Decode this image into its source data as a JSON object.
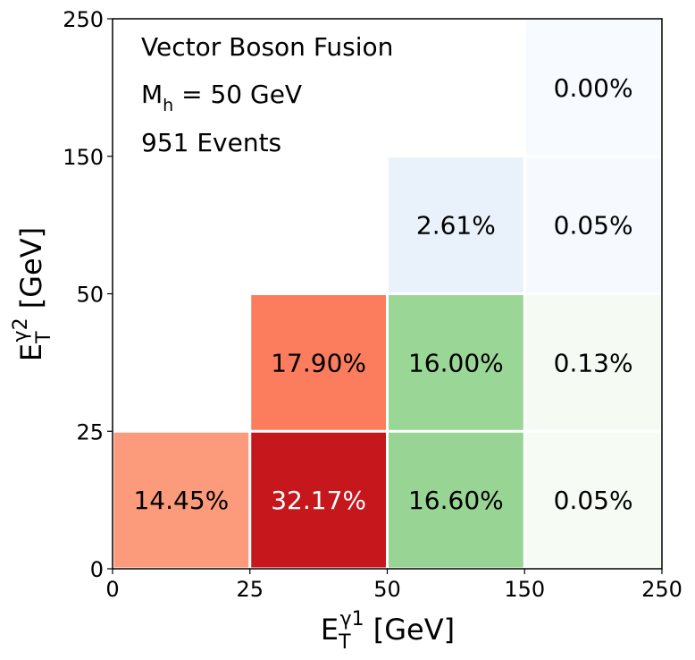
{
  "chart_data": {
    "type": "heatmap",
    "x_bin_edges": [
      "0",
      "25",
      "50",
      "150",
      "250"
    ],
    "y_bin_edges": [
      "0",
      "25",
      "50",
      "150",
      "250"
    ],
    "xlabel": {
      "base": "E",
      "sub": "T",
      "sup": "γ1",
      "unit": " [GeV]"
    },
    "ylabel": {
      "base": "E",
      "sub": "T",
      "sup": "γ2",
      "unit": " [GeV]"
    },
    "annotations": {
      "process": "Vector Boson Fusion",
      "mass_base": "M",
      "mass_sub": "h",
      "mass_value": " = 50 GeV",
      "events": "951 Events"
    },
    "cells": [
      {
        "xbin": 0,
        "ybin": 0,
        "label": "14.45%",
        "value": 14.45,
        "color": "#fc9b7c",
        "text_color": "#000000"
      },
      {
        "xbin": 1,
        "ybin": 0,
        "label": "32.17%",
        "value": 32.17,
        "color": "#c5171c",
        "text_color": "#ffffff"
      },
      {
        "xbin": 2,
        "ybin": 0,
        "label": "16.60%",
        "value": 16.6,
        "color": "#98d594",
        "text_color": "#000000"
      },
      {
        "xbin": 3,
        "ybin": 0,
        "label": "0.05%",
        "value": 0.05,
        "color": "#f6fcf4",
        "text_color": "#000000"
      },
      {
        "xbin": 1,
        "ybin": 1,
        "label": "17.90%",
        "value": 17.9,
        "color": "#fb7d5d",
        "text_color": "#000000"
      },
      {
        "xbin": 2,
        "ybin": 1,
        "label": "16.00%",
        "value": 16.0,
        "color": "#9ad695",
        "text_color": "#000000"
      },
      {
        "xbin": 3,
        "ybin": 1,
        "label": "0.13%",
        "value": 0.13,
        "color": "#f5fbf3",
        "text_color": "#000000"
      },
      {
        "xbin": 2,
        "ybin": 2,
        "label": "2.61%",
        "value": 2.61,
        "color": "#e9f2fa",
        "text_color": "#000000"
      },
      {
        "xbin": 3,
        "ybin": 2,
        "label": "0.05%",
        "value": 0.05,
        "color": "#f6faff",
        "text_color": "#000000"
      },
      {
        "xbin": 3,
        "ybin": 3,
        "label": "0.00%",
        "value": 0.0,
        "color": "#f7fbff",
        "text_color": "#000000"
      }
    ]
  }
}
